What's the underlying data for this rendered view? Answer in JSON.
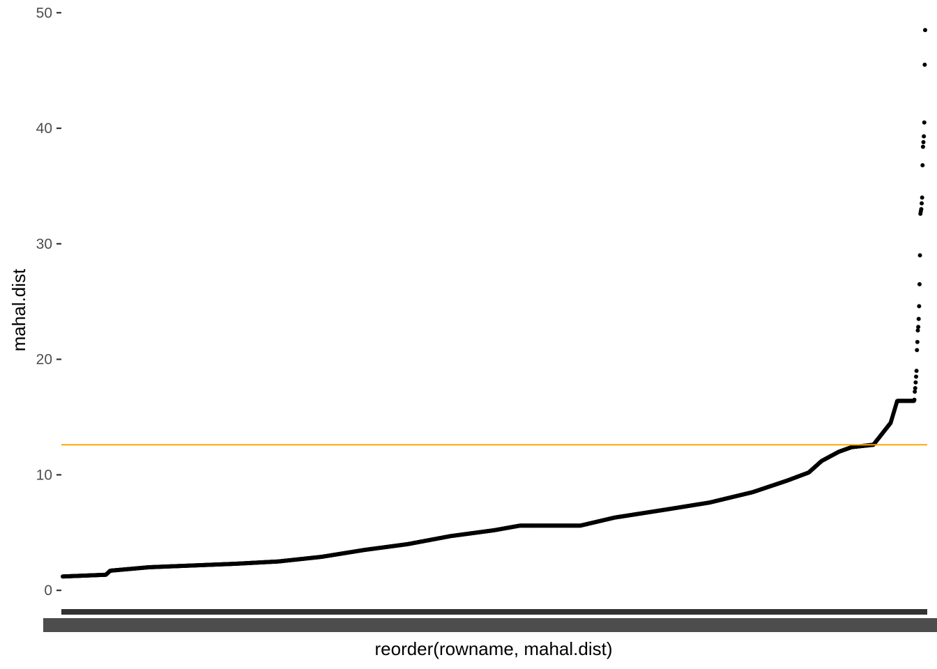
{
  "chart_data": {
    "type": "scatter",
    "title": "",
    "xlabel": "reorder(rowname, mahal.dist)",
    "ylabel": "mahal.dist",
    "ylim": [
      -1.5,
      50.5
    ],
    "yticks": [
      0,
      10,
      20,
      30,
      40,
      50
    ],
    "grid": false,
    "x_tick_labels": "overplotted row names (illegible)",
    "n_points": 2000,
    "series": [
      {
        "values_profile": [
          [
            0,
            1.2
          ],
          [
            0.05,
            1.35
          ],
          [
            0.055,
            1.7
          ],
          [
            0.1,
            2.0
          ],
          [
            0.2,
            2.3
          ],
          [
            0.25,
            2.5
          ],
          [
            0.3,
            2.9
          ],
          [
            0.35,
            3.5
          ],
          [
            0.4,
            4.0
          ],
          [
            0.45,
            4.7
          ],
          [
            0.5,
            5.2
          ],
          [
            0.53,
            5.6
          ],
          [
            0.57,
            5.6
          ],
          [
            0.6,
            5.6
          ],
          [
            0.64,
            6.3
          ],
          [
            0.7,
            7.0
          ],
          [
            0.75,
            7.6
          ],
          [
            0.8,
            8.5
          ],
          [
            0.84,
            9.5
          ],
          [
            0.865,
            10.2
          ],
          [
            0.88,
            11.2
          ],
          [
            0.9,
            12.0
          ],
          [
            0.915,
            12.4
          ],
          [
            0.94,
            12.6
          ],
          [
            0.96,
            14.5
          ],
          [
            0.97,
            17.0
          ],
          [
            0.98,
            22.0
          ],
          [
            0.985,
            28.0
          ],
          [
            0.99,
            33.0
          ],
          [
            0.993,
            38.0
          ],
          [
            0.996,
            40.0
          ],
          [
            0.998,
            45.5
          ],
          [
            1,
            48.5
          ]
        ],
        "outliers": [
          48.5,
          45.5,
          40.5,
          39.3,
          38.8,
          38.4,
          36.8,
          34.0,
          33.5,
          33.0,
          32.8,
          32.6,
          29.0,
          26.5,
          24.6,
          23.5,
          22.8,
          22.5,
          21.5,
          20.8,
          19.0,
          18.5,
          18.0,
          17.5,
          17.2,
          16.5,
          16.4,
          16.4
        ],
        "color": "#000000"
      }
    ],
    "reference_lines": [
      {
        "axis": "y",
        "value": 12.6,
        "color": "#FFA500"
      }
    ]
  }
}
